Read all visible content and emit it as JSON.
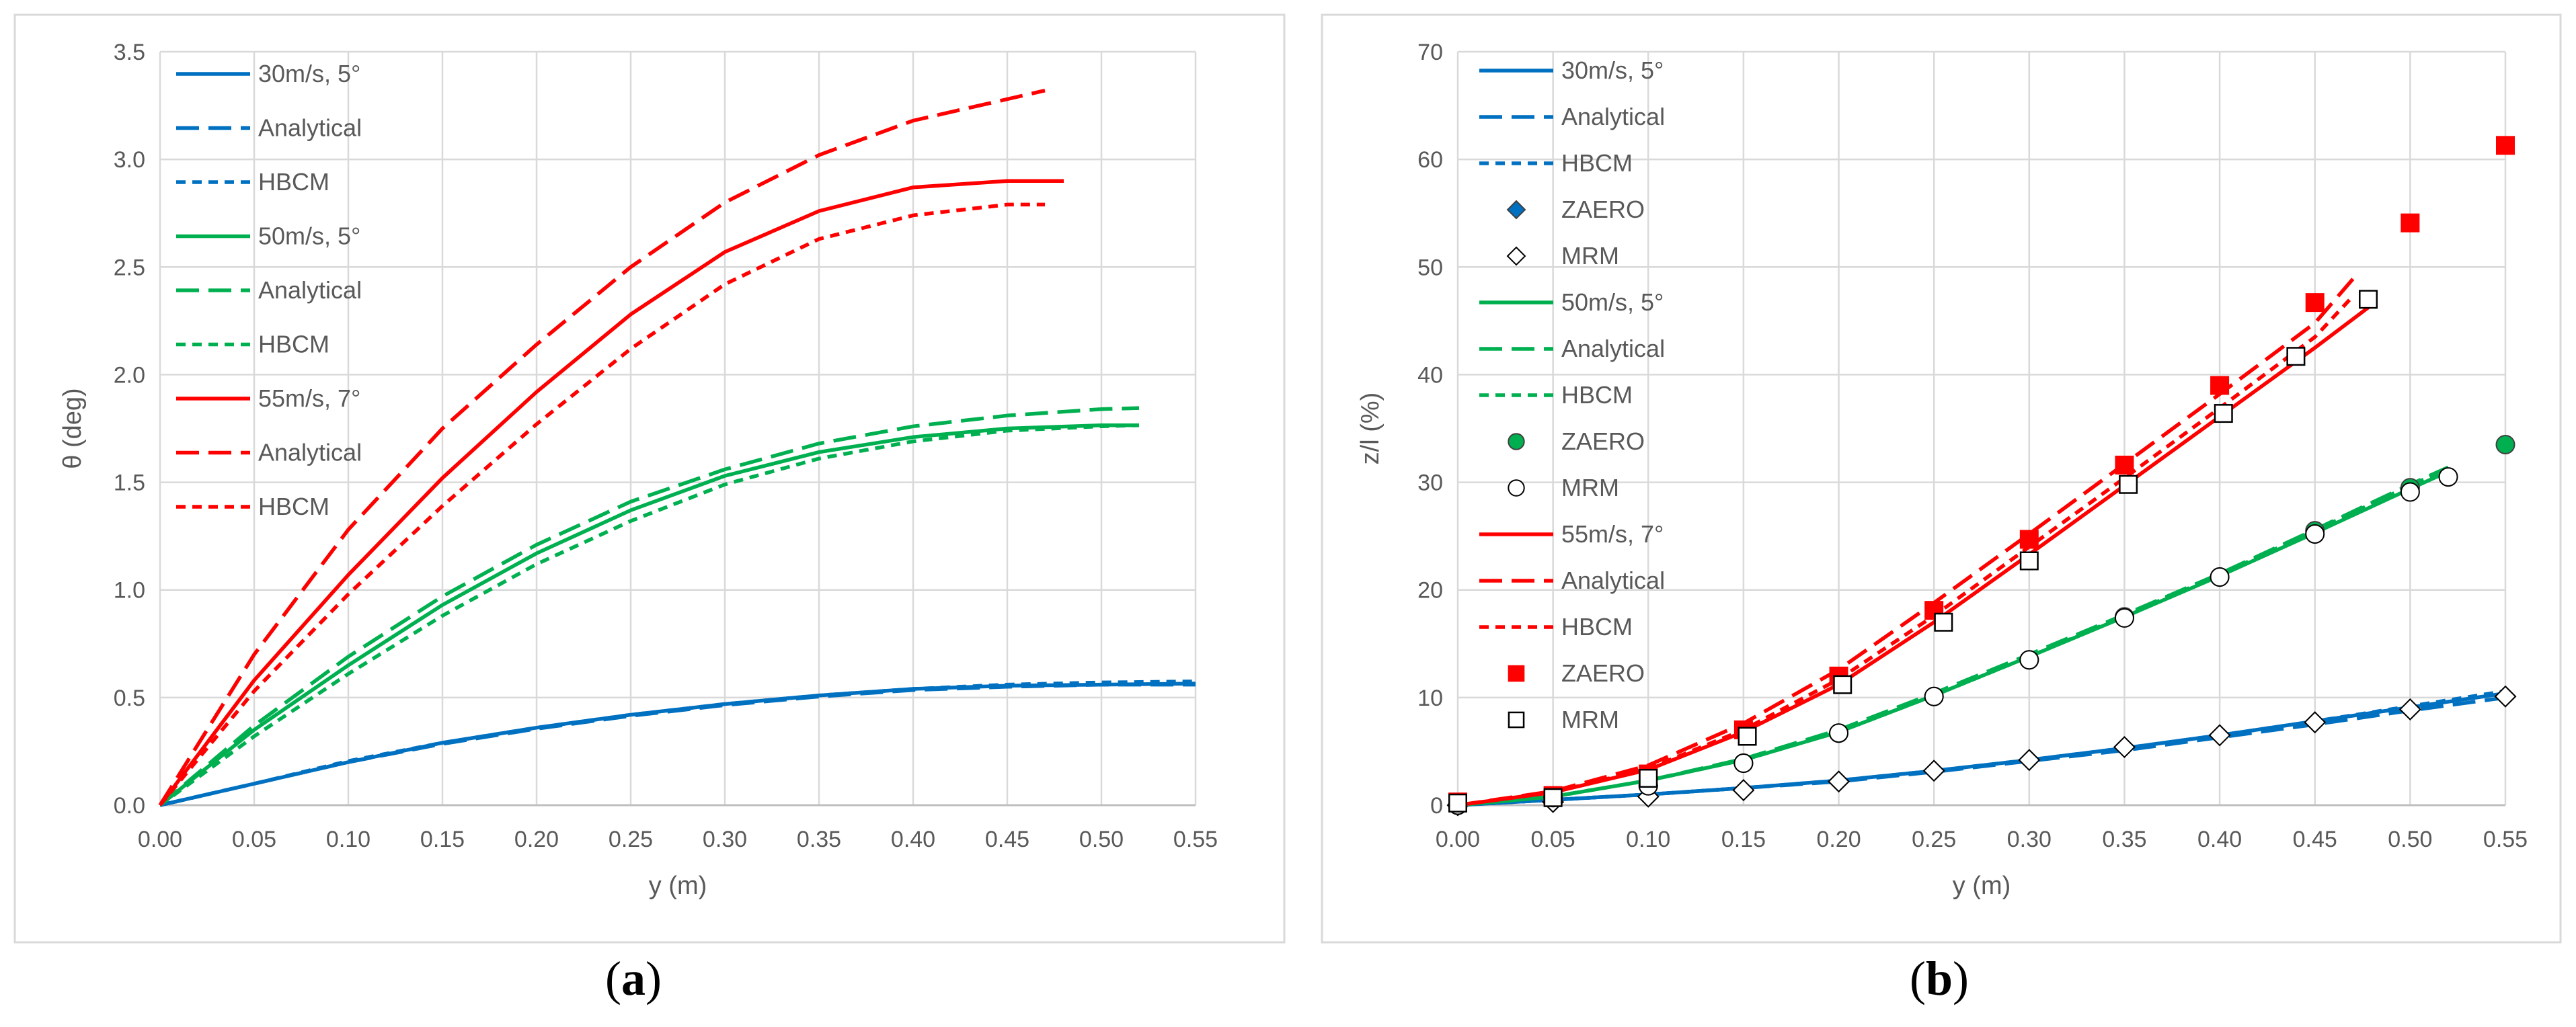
{
  "colors": {
    "blue": "#0070C0",
    "green": "#00B050",
    "red": "#FF0000",
    "grid": "#D9D9D9",
    "axis": "#595959"
  },
  "panels": [
    {
      "label": "a",
      "open": "(",
      "close": ")"
    },
    {
      "label": "b",
      "open": "(",
      "close": ")"
    }
  ],
  "chart_data": [
    {
      "type": "line",
      "xlabel": "y (m)",
      "ylabel": "θ (deg)",
      "xlim": [
        0,
        0.55
      ],
      "ylim": [
        0,
        3.5
      ],
      "xticks": [
        "0.00",
        "0.05",
        "0.10",
        "0.15",
        "0.20",
        "0.25",
        "0.30",
        "0.35",
        "0.40",
        "0.45",
        "0.50",
        "0.55"
      ],
      "yticks": [
        "0.0",
        "0.5",
        "1.0",
        "1.5",
        "2.0",
        "2.5",
        "3.0",
        "3.5"
      ],
      "legend": [
        "30m/s, 5°",
        "Analytical",
        "HBCM",
        "50m/s, 5°",
        "Analytical",
        "HBCM",
        "55m/s, 7°",
        "Analytical",
        "HBCM"
      ],
      "series": [
        {
          "name": "30m/s, 5°",
          "color": "blue",
          "style": "solid",
          "x": [
            0,
            0.05,
            0.1,
            0.15,
            0.2,
            0.25,
            0.3,
            0.35,
            0.4,
            0.45,
            0.5,
            0.55
          ],
          "y": [
            0,
            0.1,
            0.2,
            0.29,
            0.36,
            0.42,
            0.47,
            0.51,
            0.54,
            0.555,
            0.56,
            0.565
          ]
        },
        {
          "name": "Analytical",
          "color": "blue",
          "style": "longdash",
          "x": [
            0,
            0.05,
            0.1,
            0.15,
            0.2,
            0.25,
            0.3,
            0.35,
            0.4,
            0.45,
            0.5,
            0.55
          ],
          "y": [
            0,
            0.1,
            0.2,
            0.285,
            0.355,
            0.415,
            0.465,
            0.505,
            0.535,
            0.55,
            0.56,
            0.56
          ]
        },
        {
          "name": "HBCM",
          "color": "blue",
          "style": "shortdash",
          "x": [
            0,
            0.05,
            0.1,
            0.15,
            0.2,
            0.25,
            0.3,
            0.35,
            0.4,
            0.45,
            0.5,
            0.55
          ],
          "y": [
            0,
            0.1,
            0.205,
            0.29,
            0.36,
            0.42,
            0.47,
            0.51,
            0.54,
            0.56,
            0.57,
            0.575
          ]
        },
        {
          "name": "50m/s, 5°",
          "color": "green",
          "style": "solid",
          "x": [
            0,
            0.05,
            0.1,
            0.15,
            0.2,
            0.25,
            0.3,
            0.35,
            0.4,
            0.45,
            0.5,
            0.52
          ],
          "y": [
            0,
            0.35,
            0.65,
            0.93,
            1.17,
            1.37,
            1.53,
            1.64,
            1.71,
            1.75,
            1.765,
            1.765
          ]
        },
        {
          "name": "Analytical",
          "color": "green",
          "style": "longdash",
          "x": [
            0,
            0.05,
            0.1,
            0.15,
            0.2,
            0.25,
            0.3,
            0.35,
            0.4,
            0.45,
            0.5,
            0.52
          ],
          "y": [
            0,
            0.37,
            0.69,
            0.97,
            1.21,
            1.41,
            1.56,
            1.68,
            1.76,
            1.81,
            1.84,
            1.845
          ]
        },
        {
          "name": "HBCM",
          "color": "green",
          "style": "shortdash",
          "x": [
            0,
            0.05,
            0.1,
            0.15,
            0.2,
            0.25,
            0.3,
            0.35,
            0.4,
            0.45,
            0.5,
            0.52
          ],
          "y": [
            0,
            0.32,
            0.61,
            0.88,
            1.12,
            1.32,
            1.49,
            1.61,
            1.69,
            1.74,
            1.76,
            1.765
          ]
        },
        {
          "name": "55m/s, 7°",
          "color": "red",
          "style": "solid",
          "x": [
            0,
            0.05,
            0.1,
            0.15,
            0.2,
            0.25,
            0.3,
            0.35,
            0.4,
            0.45,
            0.48
          ],
          "y": [
            0,
            0.58,
            1.07,
            1.52,
            1.92,
            2.28,
            2.57,
            2.76,
            2.87,
            2.9,
            2.9
          ]
        },
        {
          "name": "Analytical",
          "color": "red",
          "style": "longdash",
          "x": [
            0,
            0.05,
            0.1,
            0.15,
            0.2,
            0.25,
            0.3,
            0.35,
            0.4,
            0.45,
            0.47
          ],
          "y": [
            0,
            0.7,
            1.28,
            1.75,
            2.14,
            2.5,
            2.8,
            3.02,
            3.18,
            3.28,
            3.32
          ]
        },
        {
          "name": "HBCM",
          "color": "red",
          "style": "shortdash",
          "x": [
            0,
            0.05,
            0.1,
            0.15,
            0.2,
            0.25,
            0.3,
            0.35,
            0.4,
            0.45,
            0.47
          ],
          "y": [
            0,
            0.53,
            0.98,
            1.39,
            1.77,
            2.12,
            2.42,
            2.63,
            2.74,
            2.79,
            2.79
          ]
        }
      ]
    },
    {
      "type": "line",
      "xlabel": "y (m)",
      "ylabel": "z/l (%)",
      "xlim": [
        0,
        0.55
      ],
      "ylim": [
        0,
        70
      ],
      "xticks": [
        "0.00",
        "0.05",
        "0.10",
        "0.15",
        "0.20",
        "0.25",
        "0.30",
        "0.35",
        "0.40",
        "0.45",
        "0.50",
        "0.55"
      ],
      "yticks": [
        "0",
        "10",
        "20",
        "30",
        "40",
        "50",
        "60",
        "70"
      ],
      "legend": [
        "30m/s, 5°",
        "Analytical",
        "HBCM",
        "ZAERO",
        "MRM",
        "50m/s, 5°",
        "Analytical",
        "HBCM",
        "ZAERO",
        "MRM",
        "55m/s, 7°",
        "Analytical",
        "HBCM",
        "ZAERO",
        "MRM"
      ],
      "series": [
        {
          "name": "30m/s, 5°",
          "color": "blue",
          "style": "solid",
          "x": [
            0,
            0.05,
            0.1,
            0.15,
            0.2,
            0.25,
            0.3,
            0.35,
            0.4,
            0.45,
            0.5,
            0.55
          ],
          "y": [
            0,
            0.5,
            1,
            1.6,
            2.3,
            3.2,
            4.2,
            5.3,
            6.5,
            7.8,
            9.1,
            10.4
          ]
        },
        {
          "name": "Analytical",
          "color": "blue",
          "style": "longdash",
          "x": [
            0,
            0.05,
            0.1,
            0.15,
            0.2,
            0.25,
            0.3,
            0.35,
            0.4,
            0.45,
            0.5,
            0.55
          ],
          "y": [
            0,
            0.5,
            1,
            1.6,
            2.2,
            3.1,
            4.1,
            5.1,
            6.3,
            7.5,
            8.8,
            10
          ]
        },
        {
          "name": "HBCM",
          "color": "blue",
          "style": "shortdash",
          "x": [
            0,
            0.05,
            0.1,
            0.15,
            0.2,
            0.25,
            0.3,
            0.35,
            0.4,
            0.45,
            0.5,
            0.55
          ],
          "y": [
            0,
            0.5,
            1,
            1.6,
            2.3,
            3.2,
            4.2,
            5.3,
            6.5,
            7.8,
            9.2,
            10.6
          ]
        },
        {
          "name": "ZAERO",
          "color": "blue",
          "style": "marker-diamond-filled",
          "x": [
            0,
            0.05,
            0.1,
            0.15,
            0.2,
            0.25,
            0.3,
            0.35,
            0.4,
            0.45,
            0.5,
            0.55
          ],
          "y": [
            0,
            0.3,
            0.8,
            1.4,
            2.2,
            3.2,
            4.2,
            5.4,
            6.5,
            7.7,
            8.9,
            10.1
          ]
        },
        {
          "name": "MRM",
          "color": "black",
          "style": "marker-diamond-open",
          "x": [
            0,
            0.05,
            0.1,
            0.15,
            0.2,
            0.25,
            0.3,
            0.35,
            0.4,
            0.45,
            0.5,
            0.55
          ],
          "y": [
            0,
            0.3,
            0.8,
            1.4,
            2.2,
            3.2,
            4.2,
            5.4,
            6.5,
            7.7,
            8.9,
            10.1
          ]
        },
        {
          "name": "50m/s, 5°",
          "color": "green",
          "style": "solid",
          "x": [
            0,
            0.05,
            0.1,
            0.15,
            0.2,
            0.25,
            0.3,
            0.35,
            0.4,
            0.45,
            0.5,
            0.52
          ],
          "y": [
            0,
            0.8,
            2.3,
            4.2,
            6.8,
            10.2,
            13.8,
            17.5,
            21.3,
            25.3,
            29.4,
            31
          ]
        },
        {
          "name": "Analytical",
          "color": "green",
          "style": "longdash",
          "x": [
            0,
            0.05,
            0.1,
            0.15,
            0.2,
            0.25,
            0.3,
            0.35,
            0.4,
            0.45,
            0.5,
            0.52
          ],
          "y": [
            0,
            0.8,
            2.3,
            4.3,
            7,
            10.4,
            14,
            17.7,
            21.5,
            25.6,
            29.8,
            31.4
          ]
        },
        {
          "name": "HBCM",
          "color": "green",
          "style": "shortdash",
          "x": [
            0,
            0.05,
            0.1,
            0.15,
            0.2,
            0.25,
            0.3,
            0.35,
            0.4,
            0.45,
            0.5,
            0.52
          ],
          "y": [
            0,
            0.8,
            2.3,
            4.2,
            6.8,
            10.2,
            13.8,
            17.6,
            21.4,
            25.5,
            29.7,
            31.3
          ]
        },
        {
          "name": "ZAERO",
          "color": "green",
          "style": "marker-circle-filled",
          "x": [
            0,
            0.05,
            0.1,
            0.15,
            0.2,
            0.25,
            0.3,
            0.35,
            0.4,
            0.45,
            0.5,
            0.55
          ],
          "y": [
            0,
            0.8,
            1.8,
            3.9,
            6.7,
            10.1,
            13.5,
            17.5,
            21.2,
            25.5,
            29.5,
            33.5
          ]
        },
        {
          "name": "MRM",
          "color": "black",
          "style": "marker-circle-open",
          "x": [
            0,
            0.05,
            0.1,
            0.15,
            0.2,
            0.25,
            0.3,
            0.35,
            0.4,
            0.45,
            0.5,
            0.52
          ],
          "y": [
            0,
            0.7,
            1.8,
            3.9,
            6.7,
            10.1,
            13.5,
            17.4,
            21.2,
            25.2,
            29.1,
            30.5
          ]
        },
        {
          "name": "55m/s, 7°",
          "color": "red",
          "style": "solid",
          "x": [
            0,
            0.05,
            0.1,
            0.15,
            0.2,
            0.25,
            0.3,
            0.35,
            0.4,
            0.45,
            0.48
          ],
          "y": [
            0,
            1.2,
            3.3,
            6.8,
            11.2,
            17,
            23.3,
            29.7,
            36.1,
            42.5,
            46.5
          ]
        },
        {
          "name": "Analytical",
          "color": "red",
          "style": "longdash",
          "x": [
            0,
            0.05,
            0.1,
            0.15,
            0.2,
            0.25,
            0.3,
            0.35,
            0.4,
            0.45,
            0.47
          ],
          "y": [
            0,
            1.3,
            3.7,
            7.6,
            12.6,
            18.8,
            25.2,
            31.7,
            38.2,
            44.8,
            48.9
          ]
        },
        {
          "name": "HBCM",
          "color": "red",
          "style": "shortdash",
          "x": [
            0,
            0.05,
            0.1,
            0.15,
            0.2,
            0.25,
            0.3,
            0.35,
            0.4,
            0.45,
            0.47
          ],
          "y": [
            0,
            1.2,
            3.4,
            7,
            11.7,
            17.6,
            24,
            30.4,
            36.9,
            43.5,
            47.3
          ]
        },
        {
          "name": "ZAERO",
          "color": "red",
          "style": "marker-square-filled",
          "x": [
            0,
            0.05,
            0.1,
            0.15,
            0.2,
            0.25,
            0.3,
            0.35,
            0.4,
            0.45,
            0.5,
            0.55
          ],
          "y": [
            0.3,
            0.9,
            2.9,
            7,
            12,
            18.1,
            24.7,
            31.6,
            39,
            46.7,
            54.1,
            61.3
          ]
        },
        {
          "name": "MRM",
          "color": "black",
          "style": "marker-square-open",
          "x": [
            0,
            0.05,
            0.1,
            0.152,
            0.202,
            0.255,
            0.3,
            0.352,
            0.402,
            0.44,
            0.478
          ],
          "y": [
            0.2,
            0.7,
            2.5,
            6.4,
            11.2,
            17,
            22.7,
            29.8,
            36.4,
            41.7,
            47
          ]
        }
      ]
    }
  ]
}
